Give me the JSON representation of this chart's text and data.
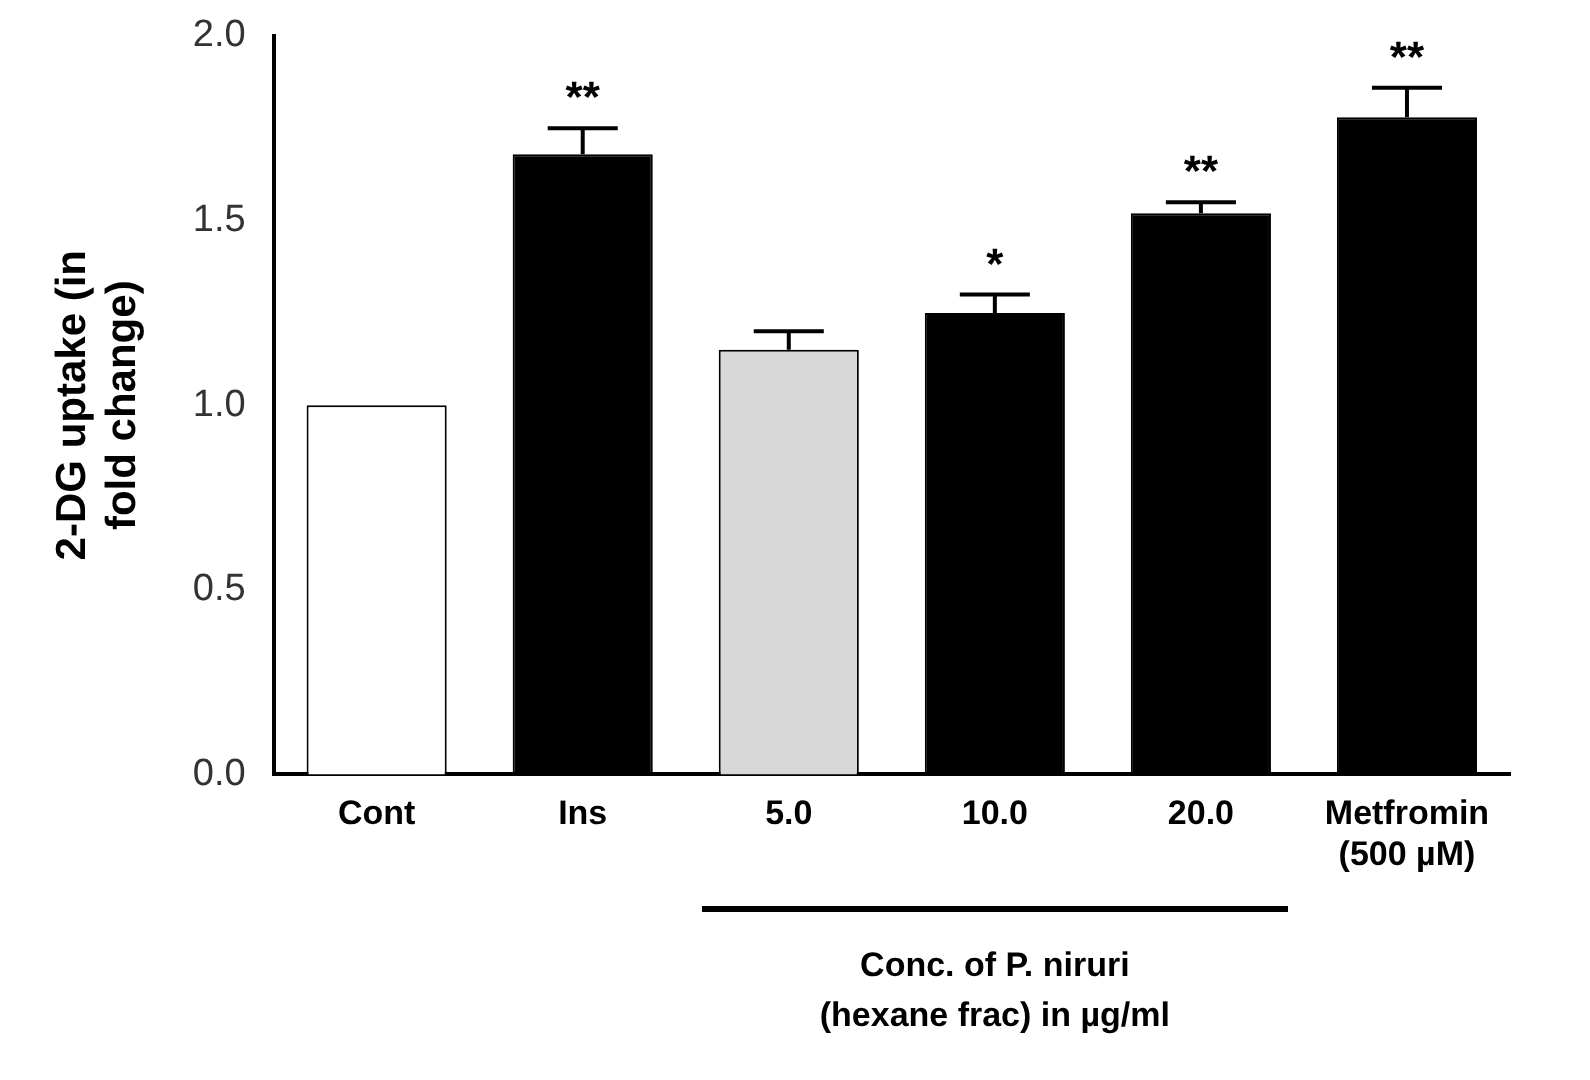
{
  "chart_data": {
    "type": "bar",
    "ylabel": "2-DG uptake (in fold change)",
    "xlabel": "Conc. of P. niruri (hexane frac) in µg/ml",
    "categories": [
      "Cont",
      "Ins",
      "5.0",
      "10.0",
      "20.0",
      "Metfromin (500 µM)"
    ],
    "values": [
      1.0,
      1.68,
      1.15,
      1.25,
      1.52,
      1.78
    ],
    "errors": [
      null,
      0.07,
      0.05,
      0.05,
      0.03,
      0.08
    ],
    "colors": [
      "#ffffff",
      "#000000",
      "#d8d8d8",
      "#000000",
      "#000000",
      "#000000"
    ],
    "ylim": [
      0,
      2
    ],
    "yticks": [
      {
        "value": 0,
        "label": "0.0"
      },
      {
        "value": 0.5,
        "label": "0.5"
      },
      {
        "value": 1,
        "label": "1.0"
      },
      {
        "value": 1.5,
        "label": "1.5"
      },
      {
        "value": 2,
        "label": "2.0"
      }
    ],
    "grid": false,
    "legend": false,
    "annotations": [
      {
        "text": "**",
        "x": "Ins",
        "y": 1.75
      },
      {
        "text": "*",
        "x": "10.0",
        "y": 1.3
      },
      {
        "text": "**",
        "x": "20.0",
        "y": 1.55
      },
      {
        "text": "**",
        "x": "Metfromin (500 µM)",
        "y": 1.86
      }
    ]
  }
}
